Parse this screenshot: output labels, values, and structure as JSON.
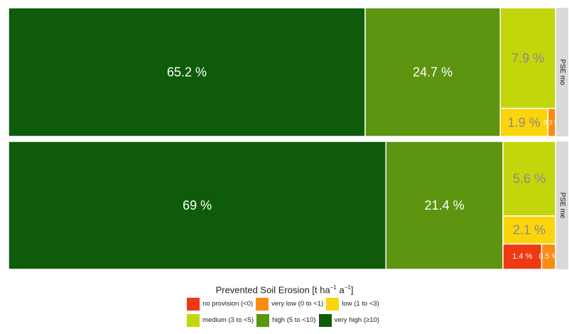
{
  "chart_data": {
    "type": "treemap",
    "title": "",
    "facets": [
      {
        "label": "PSE mo",
        "tiles": [
          {
            "category": "very high (≥10)",
            "value": 65.2,
            "label": "65.2 %"
          },
          {
            "category": "high (5 to <10)",
            "value": 24.7,
            "label": "24.7 %"
          },
          {
            "category": "medium (3 to <5)",
            "value": 7.9,
            "label": "7.9 %"
          },
          {
            "category": "low (1 to <3)",
            "value": 1.9,
            "label": "1.9 %"
          },
          {
            "category": "very low (0 to <1)",
            "value": 0.3,
            "label": "0.3 %"
          }
        ]
      },
      {
        "label": "PSE me",
        "tiles": [
          {
            "category": "very high (≥10)",
            "value": 69,
            "label": "69 %"
          },
          {
            "category": "high (5 to <10)",
            "value": 21.4,
            "label": "21.4 %"
          },
          {
            "category": "medium (3 to <5)",
            "value": 5.6,
            "label": "5.6 %"
          },
          {
            "category": "low (1 to <3)",
            "value": 2.1,
            "label": "2.1 %"
          },
          {
            "category": "no provision (<0)",
            "value": 1.4,
            "label": "1.4 %"
          },
          {
            "category": "very low (0 to <1)",
            "value": 0.5,
            "label": "0.5 %"
          }
        ]
      }
    ],
    "legend": {
      "title_main": "Prevented Soil Erosion [t ha",
      "title_sup1": "−1",
      "title_mid": " a",
      "title_sup2": "−1",
      "title_end": "]",
      "position": "bottom",
      "items": [
        {
          "label": "no provision (<0)",
          "color": "#ee3a12"
        },
        {
          "label": "very low (0 to <1)",
          "color": "#f98b10"
        },
        {
          "label": "low (1 to <3)",
          "color": "#fbd40c"
        },
        {
          "label": "medium (3 to <5)",
          "color": "#c3d60b"
        },
        {
          "label": "high (5 to <10)",
          "color": "#5d9410"
        },
        {
          "label": "very high (≥10)",
          "color": "#0e5c0a"
        }
      ]
    },
    "colors": {
      "no provision (<0)": "#ee3a12",
      "very low (0 to <1)": "#f98b10",
      "low (1 to <3)": "#fbd40c",
      "medium (3 to <5)": "#c3d60b",
      "high (5 to <10)": "#5d9410",
      "very high (≥10)": "#0e5c0a"
    },
    "strip_color": "#d9d9d9"
  }
}
